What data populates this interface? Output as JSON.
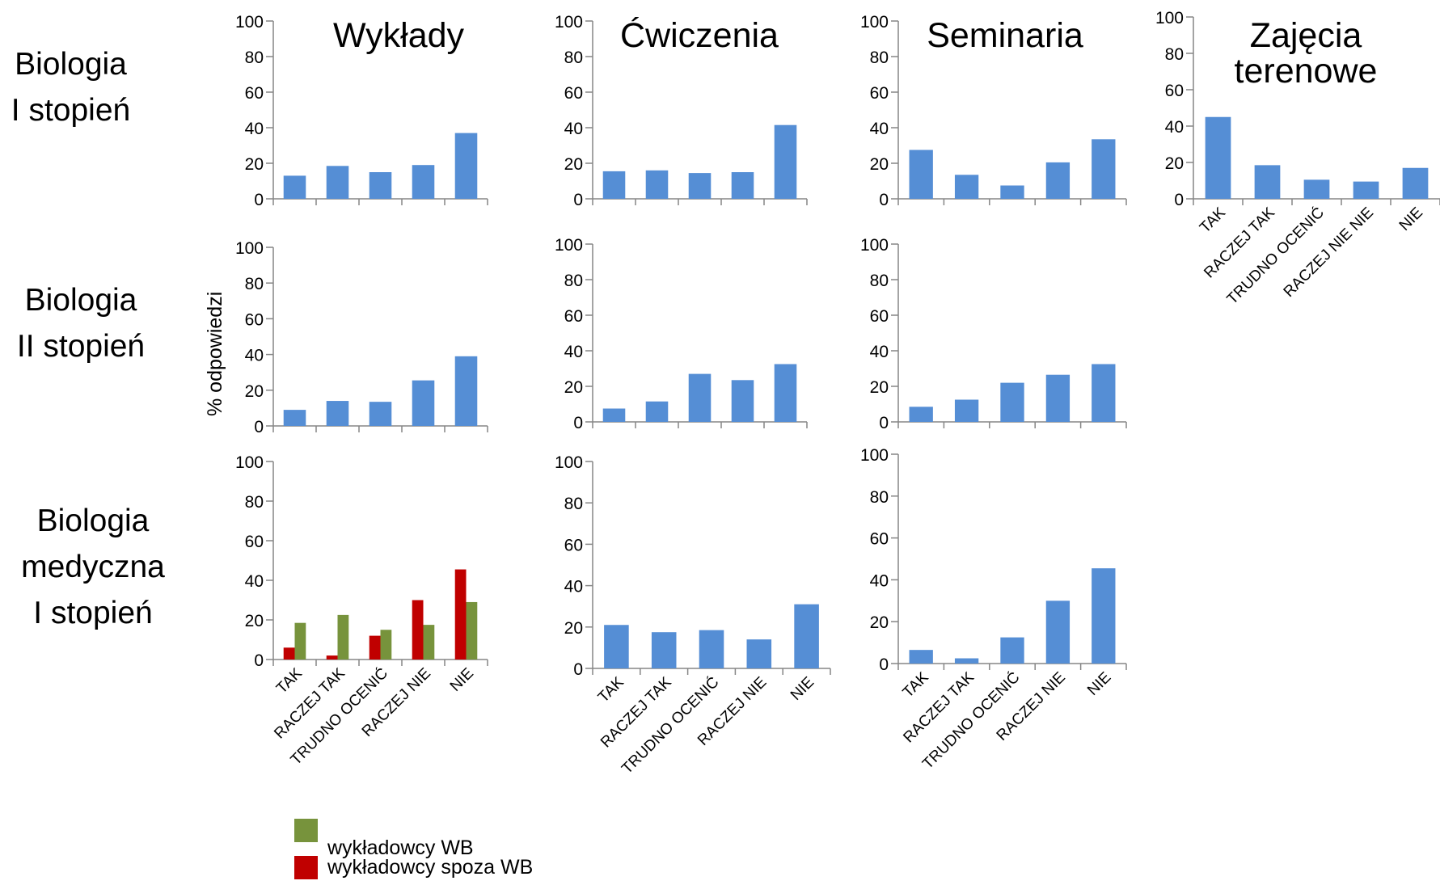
{
  "row_labels": [
    {
      "lines": [
        "Biologia",
        "I stopień"
      ]
    },
    {
      "lines": [
        "Biologia",
        "II stopień"
      ]
    },
    {
      "lines": [
        "Biologia",
        "medyczna",
        "I stopień"
      ]
    }
  ],
  "col_titles": [
    {
      "lines": [
        "Wykłady"
      ]
    },
    {
      "lines": [
        "Ćwiczenia"
      ]
    },
    {
      "lines": [
        "Seminaria"
      ]
    },
    {
      "lines": [
        "Zajęcia",
        "terenowe"
      ]
    }
  ],
  "ylabel": "% odpowiedzi",
  "legend": [
    {
      "name": "wykładowcy WB",
      "color": "#77933c"
    },
    {
      "name": "wykładowcy spoza WB",
      "color": "#c00000"
    }
  ],
  "chart_data": [
    {
      "id": "bio1-wyklady",
      "type": "bar",
      "categories": [
        "TAK",
        "RACZEJ TAK",
        "TRUDNO OCENIĆ",
        "RACZEJ NIE",
        "NIE"
      ],
      "show_categories": false,
      "ylim": [
        0,
        100
      ],
      "yticks": [
        0,
        20,
        40,
        60,
        80,
        100
      ],
      "series": [
        {
          "values": [
            13,
            18.5,
            15,
            19,
            37
          ],
          "color": "#558ed5"
        }
      ]
    },
    {
      "id": "bio1-cwiczenia",
      "type": "bar",
      "categories": [
        "TAK",
        "RACZEJ TAK",
        "TRUDNO OCENIĆ",
        "RACZEJ NIE",
        "NIE"
      ],
      "show_categories": false,
      "ylim": [
        0,
        100
      ],
      "yticks": [
        0,
        20,
        40,
        60,
        80,
        100
      ],
      "series": [
        {
          "values": [
            15.5,
            16,
            14.5,
            15,
            41.5
          ],
          "color": "#558ed5"
        }
      ]
    },
    {
      "id": "bio1-seminaria",
      "type": "bar",
      "categories": [
        "TAK",
        "RACZEJ TAK",
        "TRUDNO OCENIĆ",
        "RACZEJ NIE",
        "NIE"
      ],
      "show_categories": false,
      "ylim": [
        0,
        100
      ],
      "yticks": [
        0,
        20,
        40,
        60,
        80,
        100
      ],
      "series": [
        {
          "values": [
            27.5,
            13.5,
            7.5,
            20.5,
            33.5
          ],
          "color": "#558ed5"
        }
      ]
    },
    {
      "id": "bio1-terenowe",
      "type": "bar",
      "categories": [
        "TAK",
        "RACZEJ TAK",
        "TRUDNO OCENIĆ",
        "RACZEJ NIE NIE",
        "NIE"
      ],
      "show_categories": true,
      "ylim": [
        0,
        100
      ],
      "yticks": [
        0,
        20,
        40,
        60,
        80,
        100
      ],
      "series": [
        {
          "values": [
            45,
            18.5,
            10.5,
            9.5,
            17
          ],
          "color": "#558ed5"
        }
      ]
    },
    {
      "id": "bio2-wyklady",
      "type": "bar",
      "categories": [
        "TAK",
        "RACZEJ TAK",
        "TRUDNO OCENIĆ",
        "RACZEJ NIE",
        "NIE"
      ],
      "show_categories": false,
      "ylim": [
        0,
        100
      ],
      "yticks": [
        0,
        20,
        40,
        60,
        80,
        100
      ],
      "series": [
        {
          "values": [
            9,
            14,
            13.5,
            25.5,
            39
          ],
          "color": "#558ed5"
        }
      ]
    },
    {
      "id": "bio2-cwiczenia",
      "type": "bar",
      "categories": [
        "TAK",
        "RACZEJ TAK",
        "TRUDNO OCENIĆ",
        "RACZEJ NIE",
        "NIE"
      ],
      "show_categories": false,
      "ylim": [
        0,
        100
      ],
      "yticks": [
        0,
        20,
        40,
        60,
        80,
        100
      ],
      "series": [
        {
          "values": [
            7.5,
            11.5,
            27,
            23.5,
            32.5
          ],
          "color": "#558ed5"
        }
      ]
    },
    {
      "id": "bio2-seminaria",
      "type": "bar",
      "categories": [
        "TAK",
        "RACZEJ TAK",
        "TRUDNO OCENIĆ",
        "RACZEJ NIE",
        "NIE"
      ],
      "show_categories": false,
      "ylim": [
        0,
        100
      ],
      "yticks": [
        0,
        20,
        40,
        60,
        80,
        100
      ],
      "series": [
        {
          "values": [
            8.5,
            12.5,
            22,
            26.5,
            32.5
          ],
          "color": "#558ed5"
        }
      ]
    },
    {
      "id": "biomed-wyklady",
      "type": "bar",
      "categories": [
        "TAK",
        "RACZEJ TAK",
        "TRUDNO OCENIĆ",
        "RACZEJ NIE",
        "NIE"
      ],
      "show_categories": true,
      "ylim": [
        0,
        100
      ],
      "yticks": [
        0,
        20,
        40,
        60,
        80,
        100
      ],
      "series": [
        {
          "name": "wykładowcy spoza WB",
          "values": [
            6,
            2,
            12,
            30,
            45.5
          ],
          "color": "#c00000"
        },
        {
          "name": "wykładowcy WB",
          "values": [
            18.5,
            22.5,
            15,
            17.5,
            29
          ],
          "color": "#77933c"
        }
      ]
    },
    {
      "id": "biomed-cwiczenia",
      "type": "bar",
      "categories": [
        "TAK",
        "RACZEJ TAK",
        "TRUDNO OCENIĆ",
        "RACZEJ NIE",
        "NIE"
      ],
      "show_categories": true,
      "ylim": [
        0,
        100
      ],
      "yticks": [
        0,
        20,
        40,
        60,
        80,
        100
      ],
      "series": [
        {
          "values": [
            21,
            17.5,
            18.5,
            14,
            31
          ],
          "color": "#558ed5"
        }
      ]
    },
    {
      "id": "biomed-seminaria",
      "type": "bar",
      "categories": [
        "TAK",
        "RACZEJ TAK",
        "TRUDNO OCENIĆ",
        "RACZEJ NIE",
        "NIE"
      ],
      "show_categories": true,
      "ylim": [
        0,
        100
      ],
      "yticks": [
        0,
        20,
        40,
        60,
        80,
        100
      ],
      "series": [
        {
          "values": [
            6.5,
            2.5,
            12.5,
            30,
            45.5
          ],
          "color": "#558ed5"
        }
      ]
    }
  ]
}
